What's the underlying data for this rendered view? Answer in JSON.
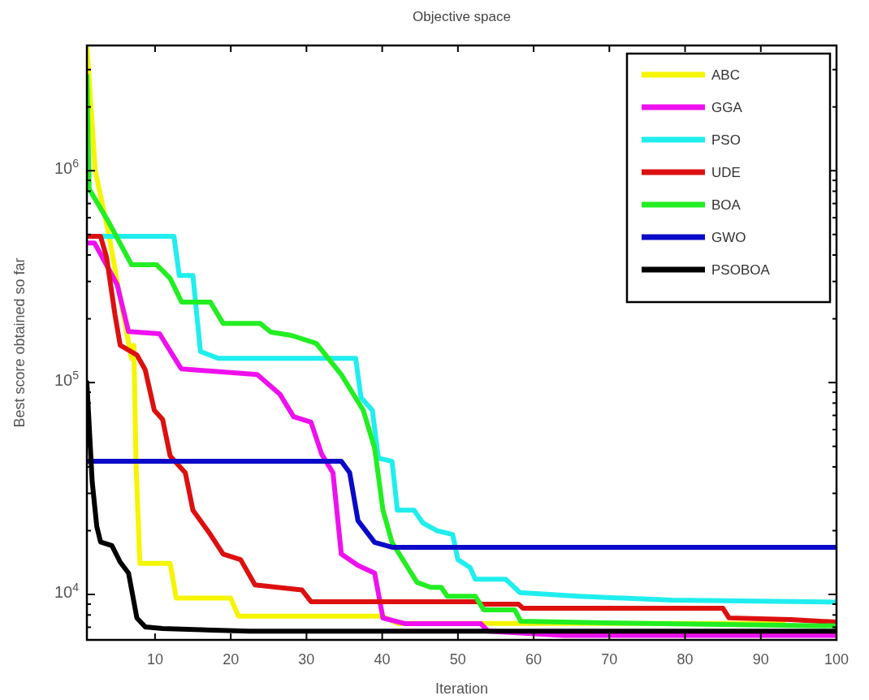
{
  "chart_data": {
    "type": "line",
    "title": "Objective space",
    "xlabel": "Iteration",
    "ylabel": "Best score obtained so far",
    "log": "y",
    "grid": false,
    "legend": "top right",
    "line_style": "solid",
    "marker": "none",
    "xlim": [
      1,
      100
    ],
    "xticks": [
      10,
      20,
      30,
      40,
      50,
      60,
      70,
      80,
      90,
      100
    ],
    "ylim": [
      6100,
      3900000
    ],
    "yticks": [
      {
        "value": 7000,
        "label": null
      },
      {
        "value": 8000,
        "label": null
      },
      {
        "value": 9000,
        "label": null
      },
      {
        "value": 10000,
        "label": "10$^{4}$"
      },
      {
        "value": 20000,
        "label": null
      },
      {
        "value": 30000,
        "label": null
      },
      {
        "value": 40000,
        "label": null
      },
      {
        "value": 50000,
        "label": null
      },
      {
        "value": 60000,
        "label": null
      },
      {
        "value": 70000,
        "label": null
      },
      {
        "value": 80000,
        "label": null
      },
      {
        "value": 90000,
        "label": null
      },
      {
        "value": 100000,
        "label": "10$^{5}$"
      },
      {
        "value": 200000,
        "label": null
      },
      {
        "value": 300000,
        "label": null
      },
      {
        "value": 400000,
        "label": null
      },
      {
        "value": 500000,
        "label": null
      },
      {
        "value": 600000,
        "label": null
      },
      {
        "value": 700000,
        "label": null
      },
      {
        "value": 800000,
        "label": null
      },
      {
        "value": 900000,
        "label": null
      },
      {
        "value": 1000000,
        "label": "10$^{6}$"
      },
      {
        "value": 2000000,
        "label": null
      },
      {
        "value": 3000000,
        "label": null
      }
    ],
    "series": [
      {
        "name": "ABC",
        "color": "#f5f500",
        "x": [
          1,
          2.1,
          3.9,
          5.4,
          6.9,
          7.2,
          7.5,
          8,
          12,
          12.8,
          20,
          21,
          40,
          42,
          93
        ],
        "values": [
          3900000,
          1000000,
          500000,
          250000,
          130000,
          150000,
          40000,
          14000,
          14000,
          9600,
          9600,
          7900,
          7900,
          7300,
          7300
        ]
      },
      {
        "name": "GGA",
        "color": "#ee10ee",
        "x": [
          1,
          2,
          5,
          6.5,
          10.6,
          13.2,
          13.5,
          23.5,
          26.5,
          28.3,
          30.6,
          32,
          33.5,
          34.6,
          36.8,
          39,
          40.1,
          43,
          53,
          54,
          64,
          100
        ],
        "values": [
          456000,
          456000,
          290000,
          174000,
          170000,
          120000,
          116000,
          109000,
          88000,
          69000,
          65000,
          46000,
          37500,
          15500,
          13700,
          12600,
          7740,
          7280,
          7280,
          6700,
          6400,
          6400
        ]
      },
      {
        "name": "PSO",
        "color": "#20eeee",
        "x": [
          1,
          12.5,
          13.2,
          15,
          16,
          18.4,
          36.5,
          37.2,
          38.7,
          39.5,
          41.3,
          42,
          44.2,
          45.4,
          47.2,
          49.3,
          50,
          51.6,
          52.3,
          56.3,
          58.2,
          66,
          78.2,
          100
        ],
        "values": [
          490000,
          490000,
          320000,
          320000,
          140000,
          130000,
          130000,
          85000,
          74000,
          44000,
          42500,
          25000,
          25000,
          21700,
          20000,
          19200,
          14600,
          13400,
          11800,
          11800,
          10200,
          9800,
          9400,
          9200
        ]
      },
      {
        "name": "UDE",
        "color": "#dd1010",
        "x": [
          1,
          2.8,
          3.6,
          4.7,
          5.4,
          7.6,
          8.7,
          9.9,
          11,
          12,
          14,
          15,
          17.3,
          19,
          21.3,
          23.2,
          29.4,
          30.6,
          52.7,
          53,
          58,
          58.6,
          85,
          85.8,
          94,
          100
        ],
        "values": [
          490000,
          490000,
          390000,
          210000,
          150000,
          135000,
          115000,
          74000,
          67000,
          45000,
          37500,
          25000,
          19200,
          15500,
          14600,
          11100,
          10500,
          9240,
          9240,
          9000,
          9000,
          8600,
          8600,
          7750,
          7600,
          7400
        ]
      },
      {
        "name": "BOA",
        "color": "#22ee22",
        "x": [
          1,
          1.3,
          3.9,
          6.9,
          10.2,
          12,
          13.5,
          17.3,
          19,
          23.9,
          25.3,
          28,
          31.3,
          34.6,
          37.5,
          39,
          40.1,
          41.3,
          44.6,
          46.4,
          47.8,
          48.6,
          52.3,
          53.4,
          57.5,
          58.3,
          69.3,
          100
        ],
        "values": [
          2800000,
          820000,
          570000,
          360000,
          360000,
          310000,
          240000,
          240000,
          190000,
          190000,
          173000,
          167000,
          153000,
          109000,
          74000,
          49000,
          25000,
          17600,
          11400,
          10800,
          10800,
          9800,
          9800,
          8460,
          8460,
          7470,
          7350,
          7100
        ]
      },
      {
        "name": "GWO",
        "color": "#0a0ac8",
        "x": [
          1,
          34.6,
          35.7,
          36.8,
          39,
          41.3,
          100
        ],
        "values": [
          42500,
          42500,
          37600,
          22300,
          17600,
          16700,
          16700
        ]
      },
      {
        "name": "PSOBOA",
        "color": "#000000",
        "x": [
          1,
          1.7,
          2.3,
          2.8,
          4.3,
          5.4,
          6.5,
          7.6,
          8.7,
          11,
          22.5,
          100
        ],
        "values": [
          100000,
          34000,
          21000,
          17700,
          17000,
          14200,
          12600,
          7740,
          7030,
          6900,
          6700,
          6700
        ]
      }
    ]
  }
}
